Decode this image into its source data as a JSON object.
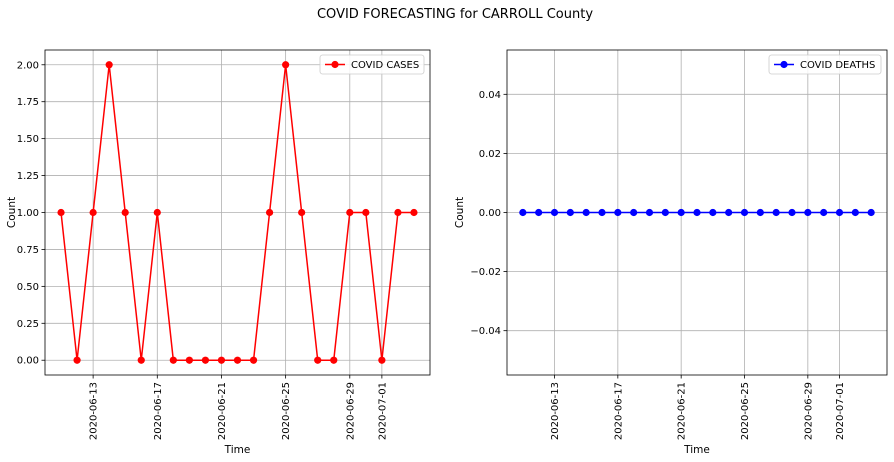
{
  "figure": {
    "suptitle": "COVID FORECASTING for CARROLL County"
  },
  "chart_data": [
    {
      "type": "line",
      "xlabel": "Time",
      "ylabel": "Count",
      "x_start": "2020-06-11",
      "x": [
        "2020-06-11",
        "2020-06-12",
        "2020-06-13",
        "2020-06-14",
        "2020-06-15",
        "2020-06-16",
        "2020-06-17",
        "2020-06-18",
        "2020-06-19",
        "2020-06-20",
        "2020-06-21",
        "2020-06-22",
        "2020-06-23",
        "2020-06-24",
        "2020-06-25",
        "2020-06-26",
        "2020-06-27",
        "2020-06-28",
        "2020-06-29",
        "2020-06-30",
        "2020-07-01",
        "2020-07-02",
        "2020-07-03"
      ],
      "series": [
        {
          "name": "COVID CASES",
          "color": "#ff0000",
          "values": [
            1,
            0,
            1,
            2,
            1,
            0,
            1,
            0,
            0,
            0,
            0,
            0,
            0,
            1,
            2,
            1,
            0,
            0,
            1,
            1,
            0,
            1,
            1
          ]
        }
      ],
      "xlim": [
        "2020-06-10",
        "2020-07-04"
      ],
      "ylim": [
        -0.1,
        2.1
      ],
      "xticks": [
        {
          "date": "2020-06-13",
          "label": "2020-06-13"
        },
        {
          "date": "2020-06-17",
          "label": "2020-06-17"
        },
        {
          "date": "2020-06-21",
          "label": "2020-06-21"
        },
        {
          "date": "2020-06-25",
          "label": "2020-06-25"
        },
        {
          "date": "2020-06-29",
          "label": "2020-06-29"
        },
        {
          "date": "2020-07-01",
          "label": "2020-07-01"
        }
      ],
      "yticks": [
        {
          "value": 0.0,
          "label": "0.00"
        },
        {
          "value": 0.25,
          "label": "0.25"
        },
        {
          "value": 0.5,
          "label": "0.50"
        },
        {
          "value": 0.75,
          "label": "0.75"
        },
        {
          "value": 1.0,
          "label": "1.00"
        },
        {
          "value": 1.25,
          "label": "1.25"
        },
        {
          "value": 1.5,
          "label": "1.50"
        },
        {
          "value": 1.75,
          "label": "1.75"
        },
        {
          "value": 2.0,
          "label": "2.00"
        }
      ],
      "grid": true,
      "legend_position": "top-right"
    },
    {
      "type": "line",
      "xlabel": "Time",
      "ylabel": "Count",
      "x_start": "2020-06-11",
      "x": [
        "2020-06-11",
        "2020-06-12",
        "2020-06-13",
        "2020-06-14",
        "2020-06-15",
        "2020-06-16",
        "2020-06-17",
        "2020-06-18",
        "2020-06-19",
        "2020-06-20",
        "2020-06-21",
        "2020-06-22",
        "2020-06-23",
        "2020-06-24",
        "2020-06-25",
        "2020-06-26",
        "2020-06-27",
        "2020-06-28",
        "2020-06-29",
        "2020-06-30",
        "2020-07-01",
        "2020-07-02",
        "2020-07-03"
      ],
      "series": [
        {
          "name": "COVID DEATHS",
          "color": "#0000ff",
          "values": [
            0,
            0,
            0,
            0,
            0,
            0,
            0,
            0,
            0,
            0,
            0,
            0,
            0,
            0,
            0,
            0,
            0,
            0,
            0,
            0,
            0,
            0,
            0
          ]
        }
      ],
      "xlim": [
        "2020-06-10",
        "2020-07-04"
      ],
      "ylim": [
        -0.055,
        0.055
      ],
      "xticks": [
        {
          "date": "2020-06-13",
          "label": "2020-06-13"
        },
        {
          "date": "2020-06-17",
          "label": "2020-06-17"
        },
        {
          "date": "2020-06-21",
          "label": "2020-06-21"
        },
        {
          "date": "2020-06-25",
          "label": "2020-06-25"
        },
        {
          "date": "2020-06-29",
          "label": "2020-06-29"
        },
        {
          "date": "2020-07-01",
          "label": "2020-07-01"
        }
      ],
      "yticks": [
        {
          "value": -0.04,
          "label": "−0.04"
        },
        {
          "value": -0.02,
          "label": "−0.02"
        },
        {
          "value": 0.0,
          "label": "0.00"
        },
        {
          "value": 0.02,
          "label": "0.02"
        },
        {
          "value": 0.04,
          "label": "0.04"
        }
      ],
      "grid": true,
      "legend_position": "top-right"
    }
  ]
}
